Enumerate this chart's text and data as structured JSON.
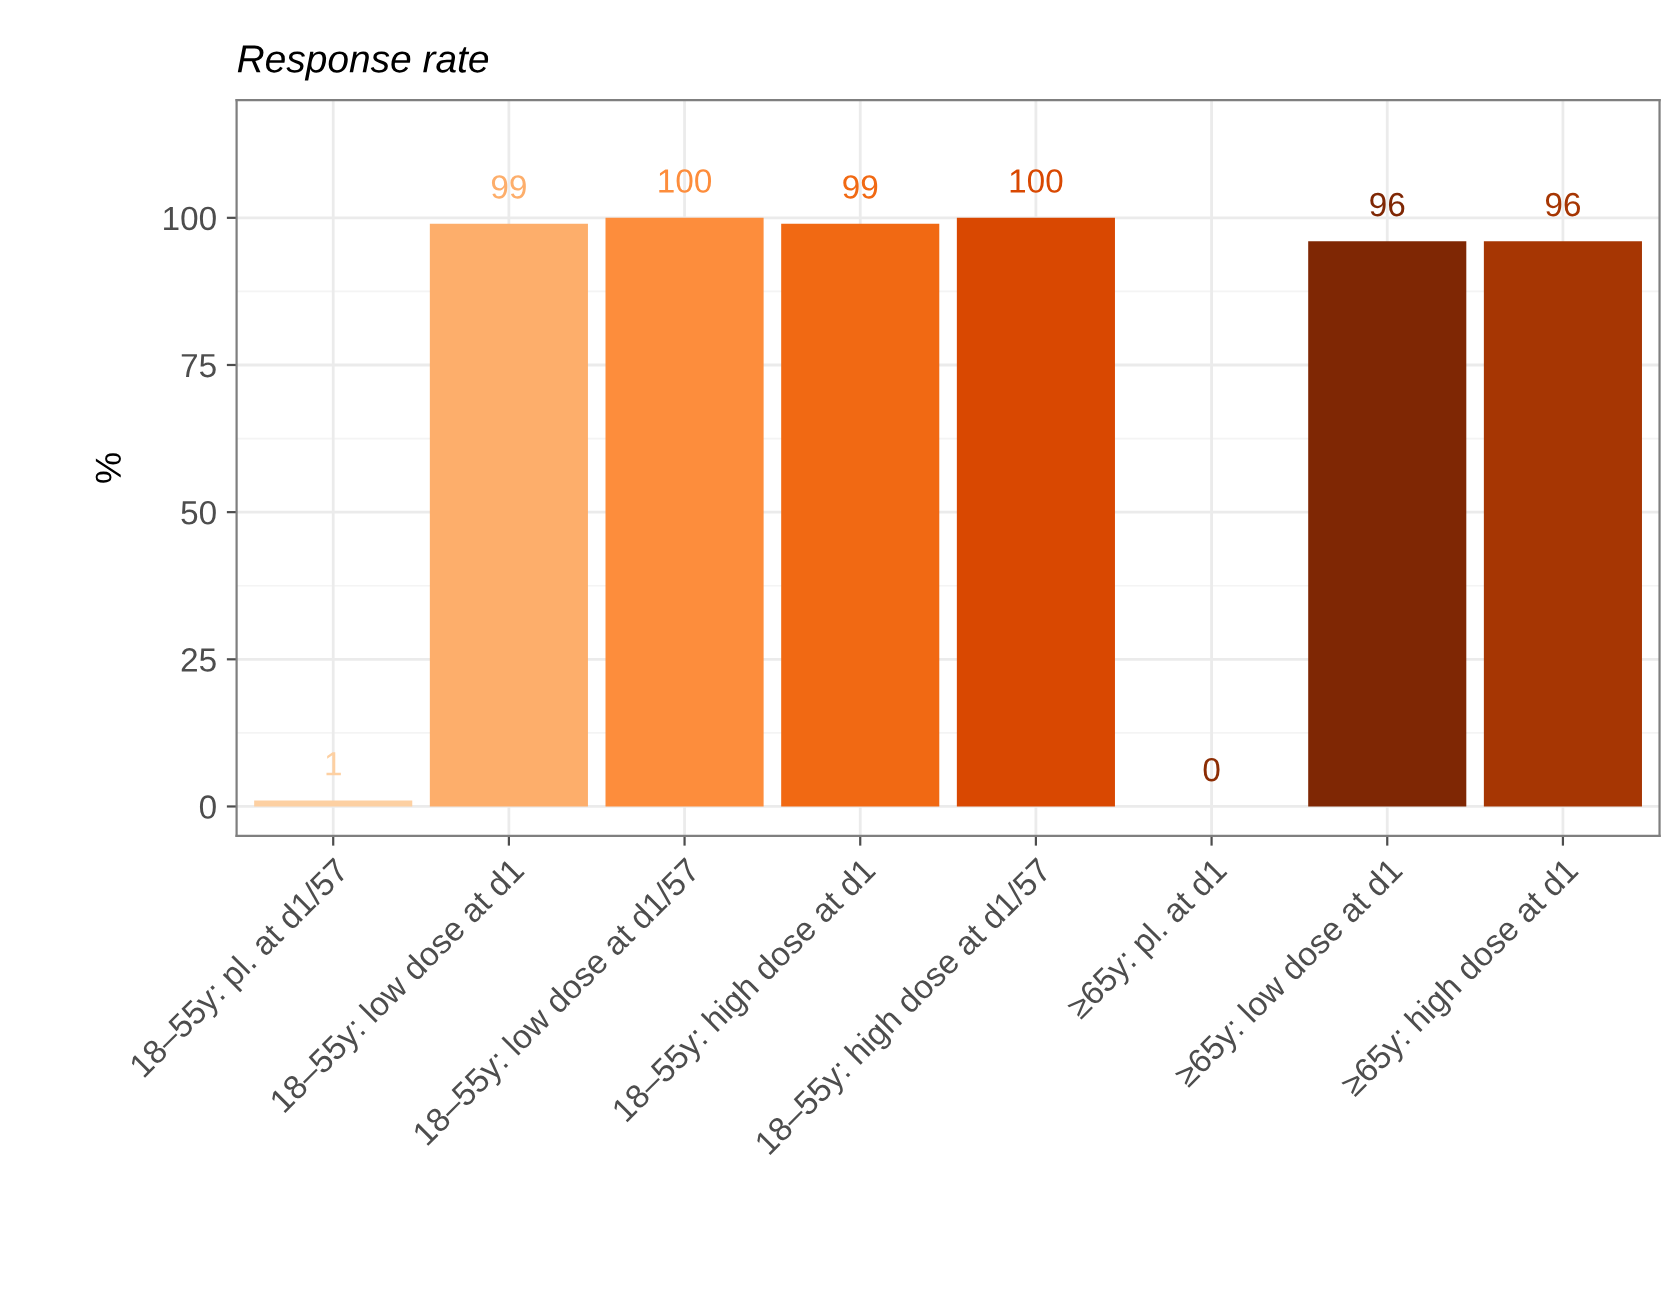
{
  "chart_data": {
    "type": "bar",
    "title": "Response rate",
    "ylabel": "%",
    "categories": [
      "18–55y: pl. at d1/57",
      "18–55y: low dose at d1",
      "18–55y: low dose at d1/57",
      "18–55y: high dose at d1",
      "18–55y: high dose at d1/57",
      "≥65y: pl. at d1",
      "≥65y: low dose at d1",
      "≥65y: high dose at d1"
    ],
    "values": [
      1,
      99,
      100,
      99,
      100,
      0,
      96,
      96
    ],
    "colors": [
      "#fdd0a2",
      "#fdae6b",
      "#fd8d3c",
      "#f16913",
      "#d94801",
      "#8c2d04",
      "#7f2704",
      "#a63603"
    ],
    "ylim": [
      -5,
      120
    ],
    "yticks": [
      0,
      25,
      50,
      75,
      100
    ],
    "grid": true,
    "data_labels": true
  }
}
